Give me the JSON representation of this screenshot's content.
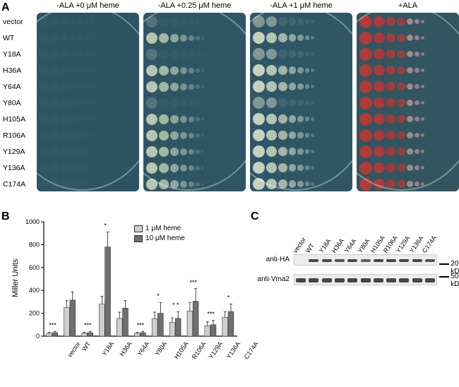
{
  "panelA": {
    "label": "A",
    "row_labels": [
      "vector",
      "WT",
      "Y18A",
      "H36A",
      "Y64A",
      "Y80A",
      "H105A",
      "R106A",
      "Y129A",
      "Y136A",
      "C174A"
    ],
    "plates": [
      {
        "title": "-ALA +0 μM heme",
        "bg": "#2d5463",
        "spot_color": "#5e8894",
        "growth_pattern": "none"
      },
      {
        "title": "-ALA +0.25 μM heme",
        "bg": "#2f5565",
        "spot_color": "#c5d4b8",
        "growth_pattern": "partial"
      },
      {
        "title": "-ALA +1 μM heme",
        "bg": "#305666",
        "spot_color": "#cdd9c3",
        "growth_pattern": "full"
      },
      {
        "title": "+ALA",
        "bg": "#33555f",
        "spot_color": "#b03a3c",
        "growth_pattern": "red"
      }
    ]
  },
  "panelB": {
    "label": "B",
    "ylabel": "Miller Units",
    "ylim": [
      0,
      1000
    ],
    "ytick_step": 200,
    "categories": [
      "vector",
      "WT",
      "Y18A",
      "H36A",
      "Y64A",
      "Y80A",
      "H105A",
      "R106A",
      "Y129A",
      "Y136A",
      "C174A"
    ],
    "series": [
      {
        "name": "1 μM heme",
        "color": "#cfcfcf",
        "values": [
          25,
          250,
          25,
          280,
          155,
          25,
          150,
          120,
          220,
          90,
          165
        ]
      },
      {
        "name": "10 μM heme",
        "color": "#6f6f6f",
        "values": [
          30,
          315,
          30,
          780,
          245,
          30,
          200,
          155,
          305,
          100,
          215
        ]
      }
    ],
    "errors": [
      [
        10,
        10
      ],
      [
        60,
        70
      ],
      [
        10,
        10
      ],
      [
        70,
        130
      ],
      [
        55,
        65
      ],
      [
        10,
        10
      ],
      [
        60,
        95
      ],
      [
        40,
        60
      ],
      [
        75,
        110
      ],
      [
        35,
        40
      ],
      [
        50,
        65
      ]
    ],
    "stars": [
      "***",
      "",
      "***",
      "*",
      "",
      "***",
      "*",
      "* *",
      "***",
      "***",
      "*"
    ],
    "grid_color": "#000000",
    "background_color": "#ffffff"
  },
  "panelC": {
    "label": "C",
    "lanes": [
      "vector",
      "WT",
      "Y18A",
      "H36A",
      "Y64A",
      "Y80A",
      "H105A",
      "R106A",
      "Y129A",
      "Y136A",
      "C174A"
    ],
    "rows": [
      {
        "label": "anti-HA",
        "mw": "20 kD",
        "intensity": [
          0,
          1,
          1,
          0.9,
          1,
          0.8,
          1,
          1,
          1,
          1,
          0.9
        ]
      },
      {
        "label": "anti-Vma2",
        "mw": "50 kD",
        "intensity": [
          1,
          1,
          1,
          1,
          1,
          1,
          1,
          1,
          1,
          1,
          1
        ]
      }
    ],
    "band_color": "#3d3d3d",
    "strip_bg": "#ececec"
  }
}
